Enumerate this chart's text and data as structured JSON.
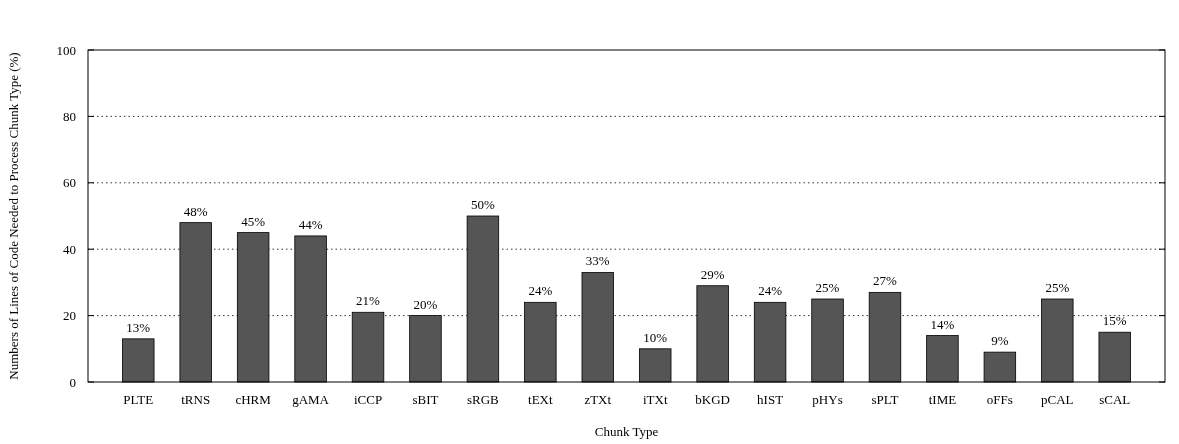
{
  "chart_data": {
    "type": "bar",
    "xlabel": "Chunk Type",
    "ylabel": "Numbers of Lines of Code Needed to Process Chunk Type (%)",
    "categories": [
      "PLTE",
      "tRNS",
      "cHRM",
      "gAMA",
      "iCCP",
      "sBIT",
      "sRGB",
      "tEXt",
      "zTXt",
      "iTXt",
      "bKGD",
      "hIST",
      "pHYs",
      "sPLT",
      "tIME",
      "oFFs",
      "pCAL",
      "sCAL"
    ],
    "values": [
      13,
      48,
      45,
      44,
      21,
      20,
      50,
      24,
      33,
      10,
      29,
      24,
      25,
      27,
      14,
      9,
      25,
      15
    ],
    "value_labels": [
      "13%",
      "48%",
      "45%",
      "44%",
      "21%",
      "20%",
      "50%",
      "24%",
      "33%",
      "10%",
      "29%",
      "24%",
      "25%",
      "27%",
      "14%",
      "9%",
      "25%",
      "15%"
    ],
    "color": "#555555",
    "ylim": [
      0,
      100
    ],
    "yticks": [
      0,
      20,
      40,
      60,
      80,
      100
    ],
    "grid": "y"
  }
}
